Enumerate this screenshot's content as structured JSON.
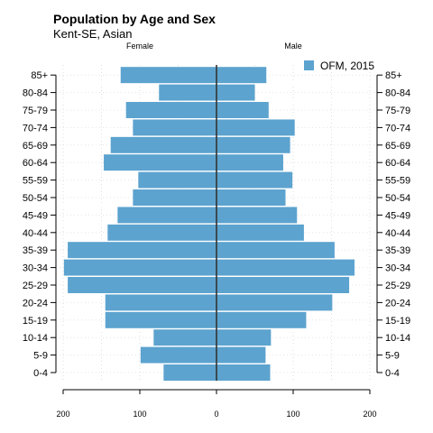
{
  "header": {
    "title": "Population by Age and Sex",
    "subtitle": "Kent-SE, Asian"
  },
  "chart_data": {
    "type": "bar",
    "orientation": "horizontal-pyramid",
    "title": "Population by Age and Sex",
    "subtitle": "Kent-SE, Asian",
    "side_labels": {
      "left": "Female",
      "right": "Male"
    },
    "categories": [
      "0-4",
      "5-9",
      "10-14",
      "15-19",
      "20-24",
      "25-29",
      "30-34",
      "35-39",
      "40-44",
      "45-49",
      "50-54",
      "55-59",
      "60-64",
      "65-69",
      "70-74",
      "75-79",
      "80-84",
      "85+"
    ],
    "series": [
      {
        "name": "OFM, 2015",
        "color": "#5ca3cf",
        "female": [
          69,
          99,
          82,
          145,
          145,
          194,
          199,
          194,
          142,
          129,
          109,
          102,
          147,
          138,
          109,
          118,
          75,
          125
        ],
        "male": [
          70,
          64,
          71,
          117,
          151,
          173,
          180,
          154,
          114,
          105,
          90,
          99,
          87,
          96,
          102,
          68,
          50,
          65
        ]
      }
    ],
    "x_ticks": [
      "200",
      "100",
      "0",
      "100",
      "200"
    ],
    "xlim": [
      -200,
      200
    ],
    "legend": {
      "position": "top-right",
      "entries": [
        "OFM, 2015"
      ]
    },
    "grid": true
  }
}
